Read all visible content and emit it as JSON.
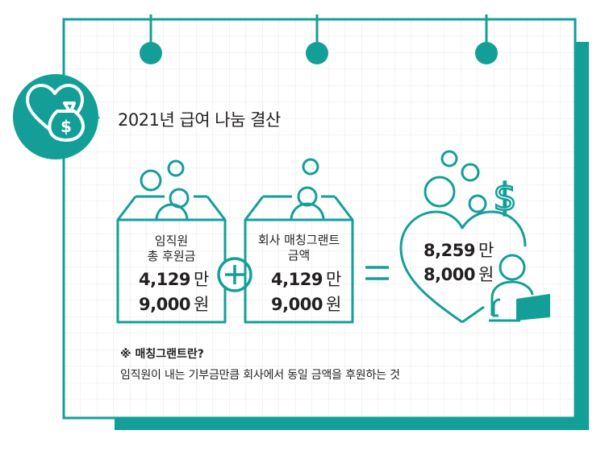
{
  "colors": {
    "accent": "#139f98",
    "shadow": "#139f98",
    "grid": "#e8e8e8",
    "text": "#231f20"
  },
  "icons": {
    "badge": "heart-money-bag-icon",
    "plus": "plus-circle-icon",
    "equals": "equals-icon",
    "result": "heart-person-laptop-icon"
  },
  "title": "2021년 급여 나눔 결산",
  "employee_box": {
    "label_line1": "임직원",
    "label_line2": "총 후원금",
    "amount_line1": "4,129",
    "unit_line1": "만",
    "amount_line2": "9,000",
    "unit_line2": "원"
  },
  "company_box": {
    "label_line1": "회사 매칭그랜트",
    "label_line2": "금액",
    "amount_line1": "4,129",
    "unit_line1": "만",
    "amount_line2": "9,000",
    "unit_line2": "원"
  },
  "total": {
    "amount_line1": "8,259",
    "unit_line1": "만",
    "amount_line2": "8,000",
    "unit_line2": "원"
  },
  "note": {
    "title": "※ 매칭그랜트란?",
    "body": "임직원이 내는 기부금만큼 회사에서 동일 금액을 후원하는 것"
  }
}
